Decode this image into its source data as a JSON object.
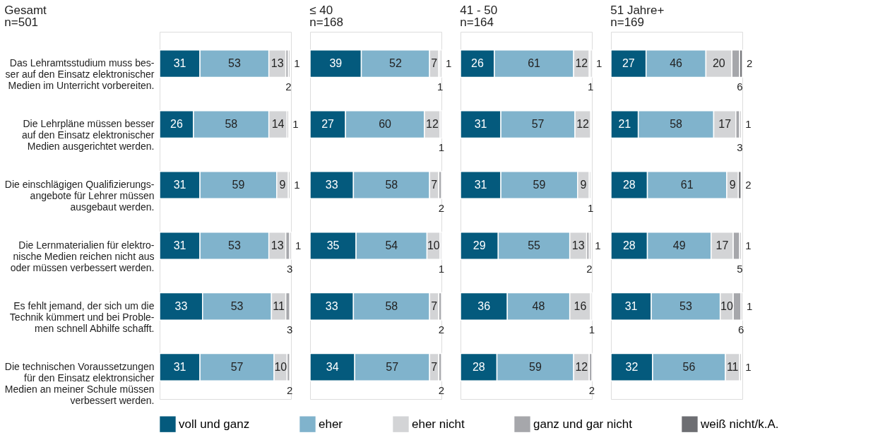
{
  "chart_data": [
    {
      "type": "bar",
      "orientation": "horizontal",
      "stacked": true,
      "data_labels": true,
      "tick_labels": "y",
      "legend": "bottom",
      "title": "Gesamt",
      "subtitle": "n=501",
      "categories": [
        "Das Lehramtsstudium muss bes-\nser auf den Einsatz elektronischer\nMedien im Unterricht vorbereiten.",
        "Die Lehrpläne müssen besser\nauf den Einsatz elektronischer\nMedien ausgerichtet werden.",
        "Die einschlägigen Qualifizierungs-\nangebote für Lehrer müssen\nausgebaut werden.",
        "Die Lernmaterialien für elektro-\nnische Medien reichen nicht aus\noder müssen verbessert werden.",
        "Es fehlt jemand, der sich um die\nTechnik kümmert und bei Proble-\nmen schnell Abhilfe schafft.",
        "Die technischen Voraussetzungen\nfür den Einsatz elektronsicher\nMedien an meiner Schule müssen\nverbessert werden."
      ],
      "series": [
        {
          "name": "voll und ganz",
          "color": "#045a7d",
          "values": [
            31,
            26,
            31,
            31,
            33,
            31
          ]
        },
        {
          "name": "eher",
          "color": "#80b3cc",
          "values": [
            53,
            58,
            59,
            53,
            53,
            57
          ]
        },
        {
          "name": "eher nicht",
          "color": "#d3d4d6",
          "values": [
            13,
            14,
            9,
            13,
            11,
            10
          ]
        },
        {
          "name": "ganz und gar nicht",
          "color": "#a6a7ab",
          "values": [
            2,
            null,
            null,
            3,
            3,
            2
          ]
        },
        {
          "name": "weiß nicht/k.A.",
          "color": "#6d6e72",
          "values": [
            1,
            1,
            1,
            1,
            null,
            null
          ]
        }
      ]
    },
    {
      "type": "bar",
      "orientation": "horizontal",
      "stacked": true,
      "data_labels": true,
      "tick_labels": false,
      "title": "≤ 40",
      "subtitle": "n=168",
      "categories": [
        null,
        null,
        null,
        null,
        null,
        null
      ],
      "series": [
        {
          "name": "voll und ganz",
          "color": "#045a7d",
          "values": [
            39,
            27,
            33,
            35,
            33,
            34
          ]
        },
        {
          "name": "eher",
          "color": "#80b3cc",
          "values": [
            52,
            60,
            58,
            54,
            58,
            57
          ]
        },
        {
          "name": "eher nicht",
          "color": "#d3d4d6",
          "values": [
            7,
            12,
            7,
            10,
            7,
            7
          ]
        },
        {
          "name": "ganz und gar nicht",
          "color": "#a6a7ab",
          "values": [
            1,
            1,
            2,
            1,
            2,
            2
          ]
        },
        {
          "name": "weiß nicht/k.A.",
          "color": "#6d6e72",
          "values": [
            1,
            null,
            null,
            null,
            null,
            null
          ]
        }
      ]
    },
    {
      "type": "bar",
      "orientation": "horizontal",
      "stacked": true,
      "data_labels": true,
      "tick_labels": false,
      "title": "41 - 50",
      "subtitle": "n=164",
      "categories": [
        null,
        null,
        null,
        null,
        null,
        null
      ],
      "series": [
        {
          "name": "voll und ganz",
          "color": "#045a7d",
          "values": [
            26,
            31,
            31,
            29,
            36,
            28
          ]
        },
        {
          "name": "eher",
          "color": "#80b3cc",
          "values": [
            61,
            57,
            59,
            55,
            48,
            59
          ]
        },
        {
          "name": "eher nicht",
          "color": "#d3d4d6",
          "values": [
            12,
            12,
            9,
            13,
            16,
            12
          ]
        },
        {
          "name": "ganz und gar nicht",
          "color": "#a6a7ab",
          "values": [
            1,
            null,
            1,
            2,
            1,
            2
          ]
        },
        {
          "name": "weiß nicht/k.A.",
          "color": "#6d6e72",
          "values": [
            1,
            null,
            null,
            1,
            null,
            null
          ]
        }
      ]
    },
    {
      "type": "bar",
      "orientation": "horizontal",
      "stacked": true,
      "data_labels": true,
      "tick_labels": false,
      "title": "51 Jahre+",
      "subtitle": "n=169",
      "categories": [
        null,
        null,
        null,
        null,
        null,
        null
      ],
      "series": [
        {
          "name": "voll und ganz",
          "color": "#045a7d",
          "values": [
            27,
            21,
            28,
            28,
            31,
            32
          ]
        },
        {
          "name": "eher",
          "color": "#80b3cc",
          "values": [
            46,
            58,
            61,
            49,
            53,
            56
          ]
        },
        {
          "name": "eher nicht",
          "color": "#d3d4d6",
          "values": [
            20,
            17,
            9,
            17,
            10,
            11
          ]
        },
        {
          "name": "ganz und gar nicht",
          "color": "#a6a7ab",
          "values": [
            6,
            3,
            null,
            5,
            6,
            null
          ]
        },
        {
          "name": "weiß nicht/k.A.",
          "color": "#6d6e72",
          "values": [
            2,
            1,
            2,
            1,
            1,
            1
          ]
        }
      ]
    }
  ]
}
